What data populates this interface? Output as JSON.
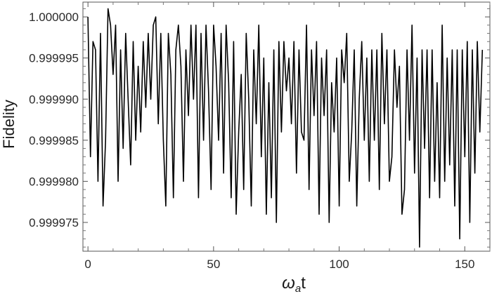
{
  "chart_data": {
    "type": "line",
    "title": "",
    "xlabel": "t",
    "xlabel_symbol": "ω",
    "xlabel_subscript": "a",
    "ylabel": "Fidelity",
    "xlim": [
      -2,
      160
    ],
    "ylim": [
      0.9999715,
      1.0000018
    ],
    "x_ticks": [
      0,
      50,
      100,
      150
    ],
    "x_tick_labels": [
      "0",
      "50",
      "100",
      "150"
    ],
    "y_ticks": [
      1.0,
      0.999995,
      0.99999,
      0.999985,
      0.99998,
      0.999975
    ],
    "y_tick_labels": [
      "1.000000",
      "0.999995",
      "0.999990",
      "0.999985",
      "0.999980",
      "0.999975"
    ],
    "grid": false,
    "line_color": "#000000",
    "series": [
      {
        "x": [
          0,
          1,
          2,
          3,
          4,
          5,
          6,
          7,
          8,
          9,
          10,
          11,
          12,
          13,
          14,
          15,
          16,
          17,
          18,
          19,
          20,
          21,
          22,
          23,
          24,
          25,
          26,
          27,
          28,
          29,
          30,
          31,
          32,
          33,
          34,
          35,
          36,
          37,
          38,
          39,
          40,
          41,
          42,
          43,
          44,
          45,
          46,
          47,
          48,
          49,
          50,
          51,
          52,
          53,
          54,
          55,
          56,
          57,
          58,
          59,
          60,
          61,
          62,
          63,
          64,
          65,
          66,
          67,
          68,
          69,
          70,
          71,
          72,
          73,
          74,
          75,
          76,
          77,
          78,
          79,
          80,
          81,
          82,
          83,
          84,
          85,
          86,
          87,
          88,
          89,
          90,
          91,
          92,
          93,
          94,
          95,
          96,
          97,
          98,
          99,
          100,
          101,
          102,
          103,
          104,
          105,
          106,
          107,
          108,
          109,
          110,
          111,
          112,
          113,
          114,
          115,
          116,
          117,
          118,
          119,
          120,
          121,
          122,
          123,
          124,
          125,
          126,
          127,
          128,
          129,
          130,
          131,
          132,
          133,
          134,
          135,
          136,
          137,
          138,
          139,
          140,
          141,
          142,
          143,
          144,
          145,
          146,
          147,
          148,
          149,
          150,
          151,
          152,
          153,
          154,
          155,
          156,
          157
        ],
        "y": [
          1.0,
          0.999983,
          0.999997,
          0.999996,
          0.99998,
          0.999998,
          0.999977,
          0.999985,
          1.000001,
          0.999999,
          0.999993,
          0.999999,
          0.99998,
          0.999996,
          0.999984,
          0.999998,
          0.99999,
          0.999982,
          0.999997,
          0.999985,
          0.999994,
          0.999986,
          0.999997,
          0.999989,
          0.999998,
          0.99999,
          0.999999,
          1.0,
          0.999987,
          0.999998,
          0.999985,
          0.999977,
          0.999998,
          0.999993,
          0.999978,
          0.999996,
          0.999999,
          0.999994,
          0.99998,
          0.999996,
          0.999988,
          0.999999,
          0.99999,
          0.999999,
          0.999978,
          0.999998,
          0.999985,
          0.999999,
          0.999991,
          0.999979,
          0.999999,
          0.999994,
          0.999985,
          0.999998,
          0.999981,
          0.999999,
          0.999992,
          0.999978,
          0.999997,
          0.999976,
          0.999986,
          0.999993,
          0.999979,
          0.999998,
          0.99999,
          0.999977,
          0.999996,
          0.999987,
          0.999999,
          0.999983,
          0.999995,
          0.999976,
          0.999992,
          0.999978,
          0.999996,
          0.999975,
          0.999997,
          0.999986,
          0.999997,
          0.999991,
          0.999995,
          0.999987,
          0.999997,
          0.999981,
          0.999996,
          0.999986,
          0.999985,
          0.999999,
          0.999979,
          0.999996,
          0.999988,
          0.999997,
          0.999976,
          0.999995,
          0.999988,
          0.999996,
          0.999975,
          0.999992,
          0.999986,
          0.999995,
          0.999977,
          0.999996,
          0.999992,
          0.999998,
          0.99998,
          0.999986,
          0.999996,
          0.999977,
          0.99999,
          0.999997,
          0.999985,
          0.999995,
          0.99998,
          0.999996,
          0.999985,
          0.999996,
          0.999979,
          0.999998,
          0.999987,
          0.999996,
          0.99998,
          0.999983,
          0.999996,
          0.999989,
          0.999994,
          0.999976,
          0.999979,
          0.999996,
          0.999985,
          0.999999,
          0.999981,
          0.999995,
          0.999972,
          0.999996,
          0.999984,
          0.999996,
          0.999978,
          0.999996,
          0.99998,
          0.999992,
          0.999978,
          0.999999,
          0.99998,
          0.999995,
          0.999982,
          0.999996,
          0.999977,
          0.999996,
          0.999973,
          0.999996,
          0.999983,
          0.999997,
          0.999975,
          0.999996,
          0.999981,
          0.999997,
          0.999986,
          0.999996
        ]
      }
    ]
  }
}
